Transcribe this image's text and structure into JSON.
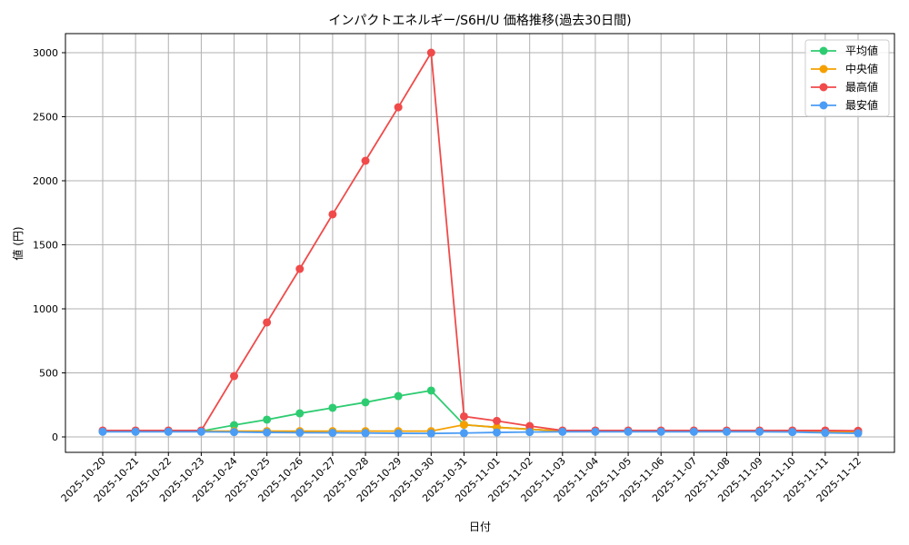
{
  "chart_data": {
    "type": "line",
    "title": "インパクトエネルギー/S6H/U 価格推移(過去30日間)",
    "xlabel": "日付",
    "ylabel": "値 (円)",
    "ylim": [
      -120,
      3150
    ],
    "yticks": [
      0,
      500,
      1000,
      1500,
      2000,
      2500,
      3000
    ],
    "grid": true,
    "legend_position": "upper right",
    "categories": [
      "2025-10-20",
      "2025-10-21",
      "2025-10-22",
      "2025-10-23",
      "2025-10-24",
      "2025-10-25",
      "2025-10-26",
      "2025-10-27",
      "2025-10-28",
      "2025-10-29",
      "2025-10-30",
      "2025-10-31",
      "2025-11-01",
      "2025-11-02",
      "2025-11-03",
      "2025-11-04",
      "2025-11-05",
      "2025-11-06",
      "2025-11-07",
      "2025-11-08",
      "2025-11-09",
      "2025-11-10",
      "2025-11-11",
      "2025-11-12"
    ],
    "series": [
      {
        "name": "平均値",
        "color": "#2ecc71",
        "values": [
          45,
          45,
          45,
          45,
          92,
          135,
          184,
          227,
          270,
          319,
          362,
          95,
          75,
          60,
          45,
          45,
          45,
          45,
          45,
          45,
          45,
          45,
          42,
          38
        ]
      },
      {
        "name": "中央値",
        "color": "#f5a000",
        "values": [
          45,
          45,
          45,
          45,
          45,
          45,
          45,
          45,
          45,
          45,
          45,
          95,
          75,
          60,
          45,
          45,
          45,
          45,
          45,
          45,
          45,
          45,
          42,
          38
        ]
      },
      {
        "name": "最高値",
        "color": "#f04a4a",
        "values": [
          50,
          50,
          50,
          50,
          475,
          894,
          1312,
          1738,
          2156,
          2574,
          3000,
          160,
          125,
          85,
          50,
          50,
          50,
          50,
          50,
          50,
          50,
          50,
          50,
          48
        ]
      },
      {
        "name": "最安値",
        "color": "#4b9cf5",
        "values": [
          40,
          40,
          40,
          40,
          38,
          35,
          33,
          32,
          30,
          28,
          27,
          30,
          35,
          38,
          40,
          40,
          40,
          40,
          40,
          40,
          40,
          38,
          32,
          28
        ]
      }
    ]
  }
}
